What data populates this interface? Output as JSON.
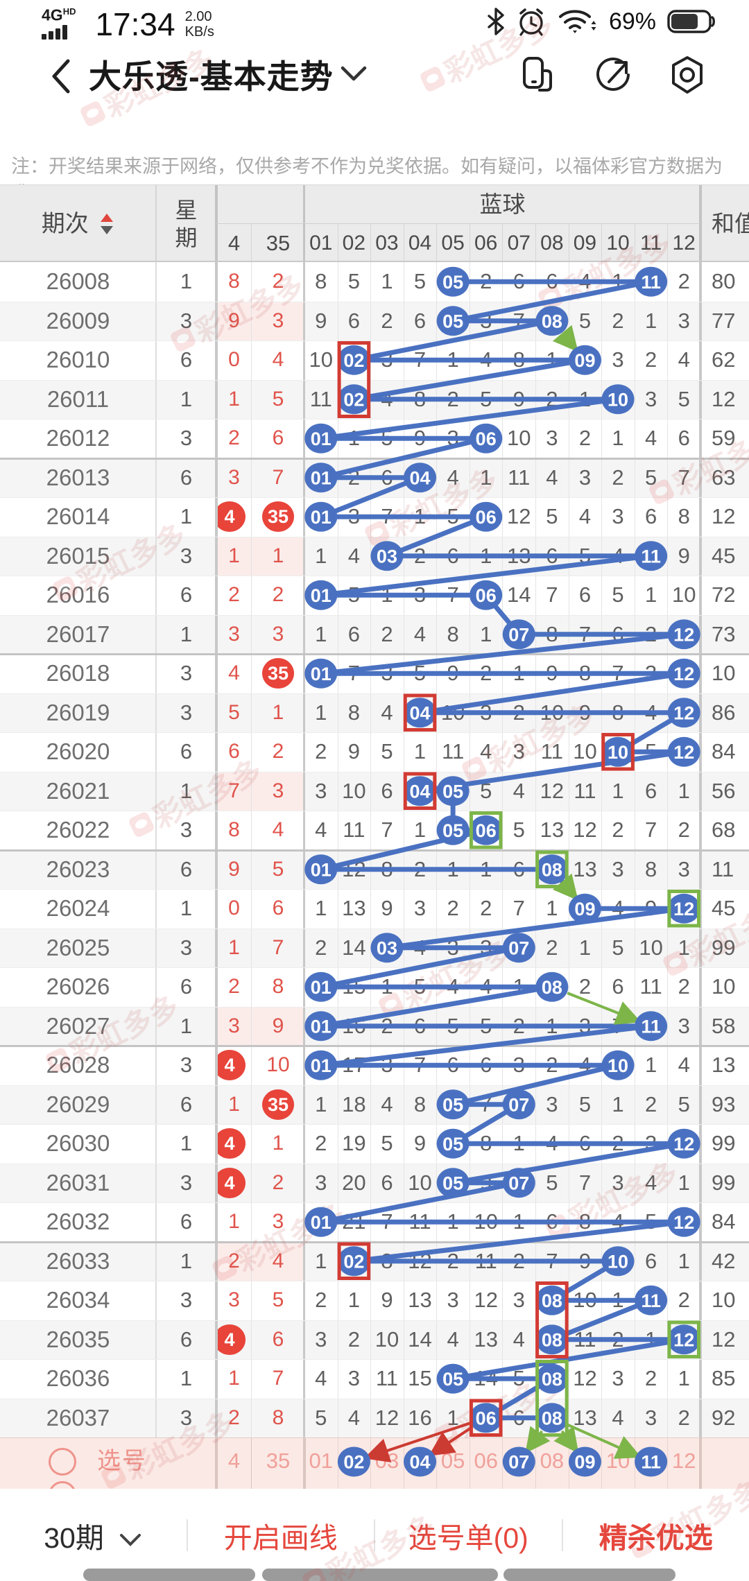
{
  "status_bar": {
    "network": "4G",
    "network_badge": "HD",
    "time": "17:34",
    "net_speed": "2.00",
    "net_speed_unit": "KB/s",
    "battery_percent": "69%",
    "battery_level": 0.69
  },
  "nav_bar": {
    "title": "大乐透-基本走势"
  },
  "notice": "注：开奖结果来源于网络，仅供参考不作为兑奖依据。如有疑问，以福体彩官方数据为准。",
  "watermark": {
    "text": "彩虹多多"
  },
  "trend_table": {
    "header": {
      "period": "期次",
      "week": "星期",
      "front_cols": [
        "4",
        "35"
      ],
      "group": "蓝球",
      "ball_cols": [
        "01",
        "02",
        "03",
        "04",
        "05",
        "06",
        "07",
        "08",
        "09",
        "10",
        "11",
        "12"
      ],
      "sum": "和值"
    },
    "colors": {
      "blue": "#4a71c1",
      "red_circle": "#e8443a",
      "box_red": "#d23b33",
      "green": "#7db549"
    },
    "rows": [
      {
        "period": "26008",
        "week": "1",
        "front": [
          "8",
          "2"
        ],
        "front_hit": [
          false,
          false
        ],
        "cells": [
          "8",
          "5",
          "1",
          "5",
          "05",
          "2",
          "6",
          "6",
          "4",
          "1",
          "11",
          "2"
        ],
        "balls": [
          5,
          11
        ],
        "sum": "80"
      },
      {
        "period": "26009",
        "week": "3",
        "front": [
          "9",
          "3"
        ],
        "front_hit": [
          false,
          false
        ],
        "cells": [
          "9",
          "6",
          "2",
          "6",
          "05",
          "3",
          "7",
          "08",
          "5",
          "2",
          "1",
          "3"
        ],
        "balls": [
          5,
          8
        ],
        "sum": "77"
      },
      {
        "period": "26010",
        "week": "6",
        "front": [
          "0",
          "4"
        ],
        "front_hit": [
          false,
          false
        ],
        "cells": [
          "10",
          "02",
          "3",
          "7",
          "1",
          "4",
          "8",
          "1",
          "09",
          "3",
          "2",
          "4"
        ],
        "balls": [
          2,
          9
        ],
        "sum": "62"
      },
      {
        "period": "26011",
        "week": "1",
        "front": [
          "1",
          "5"
        ],
        "front_hit": [
          false,
          false
        ],
        "cells": [
          "11",
          "02",
          "4",
          "8",
          "2",
          "5",
          "9",
          "2",
          "1",
          "10",
          "3",
          "5"
        ],
        "balls": [
          2,
          10
        ],
        "sum": "12"
      },
      {
        "period": "26012",
        "week": "3",
        "front": [
          "2",
          "6"
        ],
        "front_hit": [
          false,
          false
        ],
        "cells": [
          "01",
          "1",
          "5",
          "9",
          "3",
          "06",
          "10",
          "3",
          "2",
          "1",
          "4",
          "6"
        ],
        "balls": [
          1,
          6
        ],
        "sum": "59"
      },
      {
        "period": "26013",
        "week": "6",
        "front": [
          "3",
          "7"
        ],
        "front_hit": [
          false,
          false
        ],
        "cells": [
          "01",
          "2",
          "6",
          "04",
          "4",
          "1",
          "11",
          "4",
          "3",
          "2",
          "5",
          "7"
        ],
        "balls": [
          1,
          4
        ],
        "sum": "63"
      },
      {
        "period": "26014",
        "week": "1",
        "front": [
          "4",
          "35"
        ],
        "front_hit": [
          true,
          true
        ],
        "cells": [
          "01",
          "3",
          "7",
          "1",
          "5",
          "06",
          "12",
          "5",
          "4",
          "3",
          "6",
          "8"
        ],
        "balls": [
          1,
          6
        ],
        "sum": "12"
      },
      {
        "period": "26015",
        "week": "3",
        "front": [
          "1",
          "1"
        ],
        "front_hit": [
          false,
          false
        ],
        "cells": [
          "1",
          "4",
          "03",
          "2",
          "6",
          "1",
          "13",
          "6",
          "5",
          "4",
          "11",
          "9"
        ],
        "balls": [
          3,
          11
        ],
        "sum": "45"
      },
      {
        "period": "26016",
        "week": "6",
        "front": [
          "2",
          "2"
        ],
        "front_hit": [
          false,
          false
        ],
        "cells": [
          "01",
          "5",
          "1",
          "3",
          "7",
          "06",
          "14",
          "7",
          "6",
          "5",
          "1",
          "10"
        ],
        "balls": [
          1,
          6
        ],
        "sum": "72"
      },
      {
        "period": "26017",
        "week": "1",
        "front": [
          "3",
          "3"
        ],
        "front_hit": [
          false,
          false
        ],
        "cells": [
          "1",
          "6",
          "2",
          "4",
          "8",
          "1",
          "07",
          "8",
          "7",
          "6",
          "2",
          "12"
        ],
        "balls": [
          7,
          12
        ],
        "sum": "73"
      },
      {
        "period": "26018",
        "week": "3",
        "front": [
          "4",
          "35"
        ],
        "front_hit": [
          false,
          true
        ],
        "cells": [
          "01",
          "7",
          "3",
          "5",
          "9",
          "2",
          "1",
          "9",
          "8",
          "7",
          "3",
          "12"
        ],
        "balls": [
          1,
          12
        ],
        "sum": "10"
      },
      {
        "period": "26019",
        "week": "3",
        "front": [
          "5",
          "1"
        ],
        "front_hit": [
          false,
          false
        ],
        "cells": [
          "1",
          "8",
          "4",
          "04",
          "10",
          "3",
          "2",
          "10",
          "9",
          "8",
          "4",
          "12"
        ],
        "balls": [
          4,
          12
        ],
        "sum": "86"
      },
      {
        "period": "26020",
        "week": "6",
        "front": [
          "6",
          "2"
        ],
        "front_hit": [
          false,
          false
        ],
        "cells": [
          "2",
          "9",
          "5",
          "1",
          "11",
          "4",
          "3",
          "11",
          "10",
          "10",
          "5",
          "12"
        ],
        "balls": [
          10,
          12
        ],
        "sum": "84"
      },
      {
        "period": "26021",
        "week": "1",
        "front": [
          "7",
          "3"
        ],
        "front_hit": [
          false,
          false
        ],
        "cells": [
          "3",
          "10",
          "6",
          "04",
          "05",
          "5",
          "4",
          "12",
          "11",
          "1",
          "6",
          "1"
        ],
        "balls": [
          4,
          5
        ],
        "sum": "56"
      },
      {
        "period": "26022",
        "week": "3",
        "front": [
          "8",
          "4"
        ],
        "front_hit": [
          false,
          false
        ],
        "cells": [
          "4",
          "11",
          "7",
          "1",
          "05",
          "06",
          "5",
          "13",
          "12",
          "2",
          "7",
          "2"
        ],
        "balls": [
          5,
          6
        ],
        "sum": "68"
      },
      {
        "period": "26023",
        "week": "6",
        "front": [
          "9",
          "5"
        ],
        "front_hit": [
          false,
          false
        ],
        "cells": [
          "01",
          "12",
          "8",
          "2",
          "1",
          "1",
          "6",
          "08",
          "13",
          "3",
          "8",
          "3"
        ],
        "balls": [
          1,
          8
        ],
        "sum": "11"
      },
      {
        "period": "26024",
        "week": "1",
        "front": [
          "0",
          "6"
        ],
        "front_hit": [
          false,
          false
        ],
        "cells": [
          "1",
          "13",
          "9",
          "3",
          "2",
          "2",
          "7",
          "1",
          "09",
          "4",
          "9",
          "12"
        ],
        "balls": [
          9,
          12
        ],
        "sum": "45"
      },
      {
        "period": "26025",
        "week": "3",
        "front": [
          "1",
          "7"
        ],
        "front_hit": [
          false,
          false
        ],
        "cells": [
          "2",
          "14",
          "03",
          "4",
          "3",
          "3",
          "07",
          "2",
          "1",
          "5",
          "10",
          "1"
        ],
        "balls": [
          3,
          7
        ],
        "sum": "99"
      },
      {
        "period": "26026",
        "week": "6",
        "front": [
          "2",
          "8"
        ],
        "front_hit": [
          false,
          false
        ],
        "cells": [
          "01",
          "15",
          "1",
          "5",
          "4",
          "4",
          "1",
          "08",
          "2",
          "6",
          "11",
          "2"
        ],
        "balls": [
          1,
          8
        ],
        "sum": "10"
      },
      {
        "period": "26027",
        "week": "1",
        "front": [
          "3",
          "9"
        ],
        "front_hit": [
          false,
          false
        ],
        "cells": [
          "01",
          "16",
          "2",
          "6",
          "5",
          "5",
          "2",
          "1",
          "3",
          "7",
          "11",
          "3"
        ],
        "balls": [
          1,
          11
        ],
        "sum": "58"
      },
      {
        "period": "26028",
        "week": "3",
        "front": [
          "4",
          "10"
        ],
        "front_hit": [
          true,
          false
        ],
        "cells": [
          "01",
          "17",
          "3",
          "7",
          "6",
          "6",
          "3",
          "2",
          "4",
          "10",
          "1",
          "4"
        ],
        "balls": [
          1,
          10
        ],
        "sum": "13"
      },
      {
        "period": "26029",
        "week": "6",
        "front": [
          "1",
          "35"
        ],
        "front_hit": [
          false,
          true
        ],
        "cells": [
          "1",
          "18",
          "4",
          "8",
          "05",
          "7",
          "07",
          "3",
          "5",
          "1",
          "2",
          "5"
        ],
        "balls": [
          5,
          7
        ],
        "sum": "93"
      },
      {
        "period": "26030",
        "week": "1",
        "front": [
          "4",
          "1"
        ],
        "front_hit": [
          true,
          false
        ],
        "cells": [
          "2",
          "19",
          "5",
          "9",
          "05",
          "8",
          "1",
          "4",
          "6",
          "2",
          "3",
          "12"
        ],
        "balls": [
          5,
          12
        ],
        "sum": "99"
      },
      {
        "period": "26031",
        "week": "3",
        "front": [
          "4",
          "2"
        ],
        "front_hit": [
          true,
          false
        ],
        "cells": [
          "3",
          "20",
          "6",
          "10",
          "05",
          "9",
          "07",
          "5",
          "7",
          "3",
          "4",
          "1"
        ],
        "balls": [
          5,
          7
        ],
        "sum": "99"
      },
      {
        "period": "26032",
        "week": "6",
        "front": [
          "1",
          "3"
        ],
        "front_hit": [
          false,
          false
        ],
        "cells": [
          "01",
          "21",
          "7",
          "11",
          "1",
          "10",
          "1",
          "6",
          "8",
          "4",
          "5",
          "12"
        ],
        "balls": [
          1,
          12
        ],
        "sum": "84"
      },
      {
        "period": "26033",
        "week": "1",
        "front": [
          "2",
          "4"
        ],
        "front_hit": [
          false,
          false
        ],
        "cells": [
          "1",
          "02",
          "8",
          "12",
          "2",
          "11",
          "2",
          "7",
          "9",
          "10",
          "6",
          "1"
        ],
        "balls": [
          2,
          10
        ],
        "sum": "42"
      },
      {
        "period": "26034",
        "week": "3",
        "front": [
          "3",
          "5"
        ],
        "front_hit": [
          false,
          false
        ],
        "cells": [
          "2",
          "1",
          "9",
          "13",
          "3",
          "12",
          "3",
          "08",
          "10",
          "1",
          "11",
          "2"
        ],
        "balls": [
          8,
          11
        ],
        "sum": "10"
      },
      {
        "period": "26035",
        "week": "6",
        "front": [
          "4",
          "6"
        ],
        "front_hit": [
          true,
          false
        ],
        "cells": [
          "3",
          "2",
          "10",
          "14",
          "4",
          "13",
          "4",
          "08",
          "11",
          "2",
          "1",
          "12"
        ],
        "balls": [
          8,
          12
        ],
        "sum": "12"
      },
      {
        "period": "26036",
        "week": "1",
        "front": [
          "1",
          "7"
        ],
        "front_hit": [
          false,
          false
        ],
        "cells": [
          "4",
          "3",
          "11",
          "15",
          "05",
          "14",
          "5",
          "08",
          "12",
          "3",
          "2",
          "1"
        ],
        "balls": [
          5,
          8
        ],
        "sum": "85"
      },
      {
        "period": "26037",
        "week": "3",
        "front": [
          "2",
          "8"
        ],
        "front_hit": [
          false,
          false
        ],
        "cells": [
          "5",
          "4",
          "12",
          "16",
          "1",
          "06",
          "6",
          "08",
          "13",
          "4",
          "3",
          "2"
        ],
        "balls": [
          6,
          8
        ],
        "sum": "92"
      }
    ],
    "highlight_boxes": {
      "red": [
        {
          "row": 2,
          "col": 2,
          "span": 2
        },
        {
          "row": 11,
          "col": 4,
          "span": 1
        },
        {
          "row": 12,
          "col": 10,
          "span": 1
        },
        {
          "row": 13,
          "col": 4,
          "span": 1
        },
        {
          "row": 25,
          "col": 2,
          "span": 1
        },
        {
          "row": 26,
          "col": 8,
          "span": 2
        },
        {
          "row": 29,
          "col": 6,
          "span": 1
        }
      ],
      "green": [
        {
          "row": 14,
          "col": 6,
          "span": 1
        },
        {
          "row": 15,
          "col": 8,
          "span": 1
        },
        {
          "row": 16,
          "col": 12,
          "span": 1
        },
        {
          "row": 27,
          "col": 12,
          "span": 1
        },
        {
          "row": 28,
          "col": 8,
          "span": 2
        }
      ]
    },
    "arrows": {
      "green": [
        {
          "from": [
            1,
            8
          ],
          "to": [
            2,
            9
          ]
        },
        {
          "from": [
            15,
            8
          ],
          "to": [
            16,
            9
          ]
        },
        {
          "from": [
            18,
            8
          ],
          "to": [
            19,
            11
          ]
        },
        {
          "from": [
            29,
            8
          ],
          "to_select": 7
        },
        {
          "from": [
            29,
            8
          ],
          "to_select": 9
        },
        {
          "from": [
            29,
            8
          ],
          "to_select": 11
        }
      ],
      "red": [
        {
          "from": [
            29,
            6
          ],
          "to_select": 2
        },
        {
          "from": [
            29,
            6
          ],
          "to_select": 4
        }
      ]
    },
    "pink_stripe_rows": [
      1,
      7,
      13,
      19,
      25
    ]
  },
  "select_row": {
    "label": "选号",
    "front": [
      "4",
      "35"
    ],
    "numbers": [
      "01",
      "02",
      "03",
      "04",
      "05",
      "06",
      "07",
      "08",
      "09",
      "10",
      "11",
      "12"
    ],
    "picked": [
      2,
      4,
      7,
      9,
      11
    ]
  },
  "bottom_bar": {
    "periods": "30期",
    "items": [
      "开启画线",
      "选号单(0)",
      "精杀优选"
    ]
  }
}
